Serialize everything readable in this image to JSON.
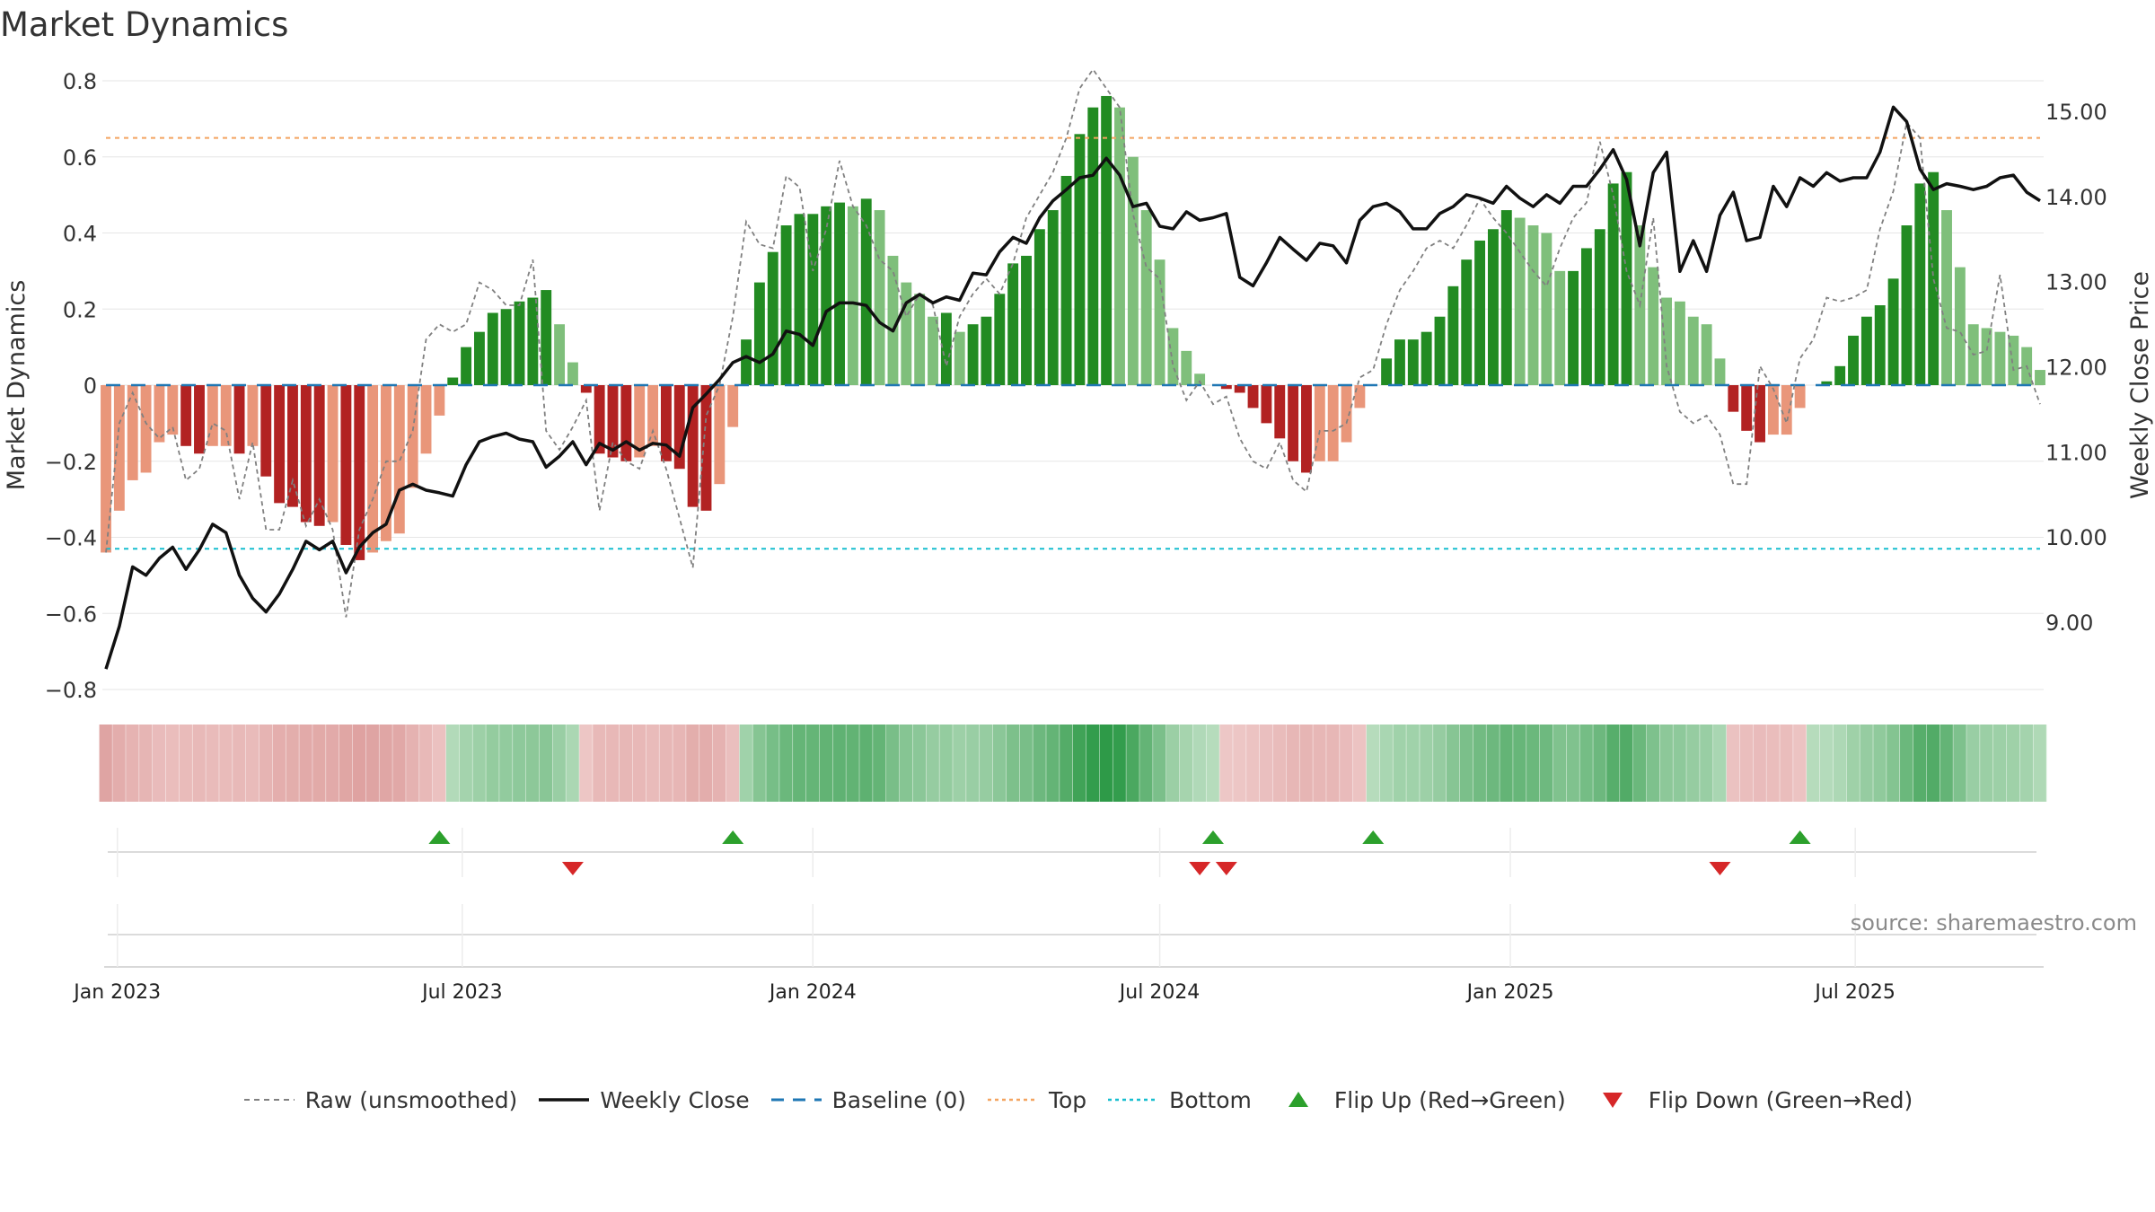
{
  "chart_data": {
    "type": "bar",
    "title": "Market Dynamics",
    "source": "source: sharemaestro.com",
    "ylabel_left": "Market Dynamics",
    "ylabel_right": "Weekly Close Price",
    "ylim_left": [
      -0.85,
      0.85
    ],
    "ylim_right": [
      8.4,
      15.5
    ],
    "yticks_left": [
      "0.8",
      "0.6",
      "0.4",
      "0.2",
      "0",
      "−0.2",
      "−0.4",
      "−0.6",
      "−0.8"
    ],
    "yticks_right": [
      "15.00",
      "14.00",
      "13.00",
      "12.00",
      "11.00",
      "10.00",
      "9.00"
    ],
    "xticks": [
      "Jan 2023",
      "Jul 2023",
      "Jan 2024",
      "Jul 2024",
      "Jan 2025",
      "Jul 2025"
    ],
    "x_start": "2022-12-26",
    "x_step_days": 7,
    "top_level": 0.65,
    "bottom_level": -0.43,
    "baseline": 0,
    "series": [
      {
        "name": "Market Dynamics (histogram)",
        "values": [
          -0.44,
          -0.33,
          -0.25,
          -0.23,
          -0.15,
          -0.13,
          -0.16,
          -0.18,
          -0.16,
          -0.16,
          -0.18,
          -0.16,
          -0.24,
          -0.31,
          -0.32,
          -0.36,
          -0.37,
          -0.36,
          -0.42,
          -0.46,
          -0.44,
          -0.41,
          -0.39,
          -0.27,
          -0.18,
          -0.08,
          0.02,
          0.1,
          0.14,
          0.19,
          0.2,
          0.22,
          0.23,
          0.25,
          0.16,
          0.06,
          -0.02,
          -0.18,
          -0.19,
          -0.2,
          -0.19,
          -0.16,
          -0.2,
          -0.22,
          -0.32,
          -0.33,
          -0.26,
          -0.11,
          0.12,
          0.27,
          0.35,
          0.42,
          0.45,
          0.45,
          0.47,
          0.48,
          0.47,
          0.49,
          0.46,
          0.34,
          0.27,
          0.24,
          0.18,
          0.19,
          0.14,
          0.16,
          0.18,
          0.24,
          0.32,
          0.34,
          0.41,
          0.46,
          0.55,
          0.66,
          0.73,
          0.76,
          0.73,
          0.6,
          0.46,
          0.33,
          0.15,
          0.09,
          0.03,
          0.0,
          -0.01,
          -0.02,
          -0.06,
          -0.1,
          -0.14,
          -0.2,
          -0.23,
          -0.2,
          -0.2,
          -0.15,
          -0.06,
          0.0,
          0.07,
          0.12,
          0.12,
          0.14,
          0.18,
          0.26,
          0.33,
          0.38,
          0.41,
          0.46,
          0.44,
          0.42,
          0.4,
          0.3,
          0.3,
          0.36,
          0.41,
          0.53,
          0.56,
          0.42,
          0.31,
          0.23,
          0.22,
          0.18,
          0.16,
          0.07,
          -0.07,
          -0.12,
          -0.15,
          -0.13,
          -0.13,
          -0.06,
          0.0,
          0.01,
          0.05,
          0.13,
          0.18,
          0.21,
          0.28,
          0.42,
          0.53,
          0.56,
          0.46,
          0.31,
          0.16,
          0.15,
          0.14,
          0.13,
          0.1,
          0.04
        ]
      },
      {
        "name": "Raw (unsmoothed)",
        "values": [
          -0.44,
          -0.1,
          -0.02,
          -0.1,
          -0.14,
          -0.11,
          -0.25,
          -0.22,
          -0.1,
          -0.12,
          -0.3,
          -0.15,
          -0.38,
          -0.38,
          -0.25,
          -0.37,
          -0.3,
          -0.38,
          -0.61,
          -0.38,
          -0.3,
          -0.2,
          -0.2,
          -0.12,
          0.12,
          0.16,
          0.14,
          0.16,
          0.27,
          0.25,
          0.21,
          0.21,
          0.33,
          -0.12,
          -0.17,
          -0.11,
          -0.04,
          -0.33,
          -0.15,
          -0.2,
          -0.22,
          -0.12,
          -0.22,
          -0.35,
          -0.48,
          -0.08,
          0.0,
          0.18,
          0.43,
          0.37,
          0.36,
          0.55,
          0.52,
          0.3,
          0.41,
          0.59,
          0.47,
          0.42,
          0.33,
          0.3,
          0.18,
          0.24,
          0.21,
          0.05,
          0.18,
          0.24,
          0.28,
          0.24,
          0.32,
          0.44,
          0.5,
          0.56,
          0.65,
          0.78,
          0.83,
          0.78,
          0.73,
          0.45,
          0.31,
          0.28,
          0.05,
          -0.04,
          0.01,
          -0.05,
          -0.03,
          -0.14,
          -0.2,
          -0.22,
          -0.15,
          -0.25,
          -0.28,
          -0.12,
          -0.12,
          -0.1,
          0.02,
          0.04,
          0.16,
          0.25,
          0.3,
          0.36,
          0.38,
          0.36,
          0.42,
          0.49,
          0.44,
          0.4,
          0.35,
          0.3,
          0.26,
          0.36,
          0.44,
          0.48,
          0.64,
          0.5,
          0.3,
          0.21,
          0.44,
          0.05,
          -0.07,
          -0.1,
          -0.08,
          -0.13,
          -0.26,
          -0.26,
          0.05,
          -0.01,
          -0.1,
          0.07,
          0.12,
          0.23,
          0.22,
          0.23,
          0.25,
          0.41,
          0.51,
          0.69,
          0.65,
          0.28,
          0.15,
          0.14,
          0.08,
          0.09,
          0.29,
          0.04,
          0.05,
          -0.05
        ]
      },
      {
        "name": "Weekly Close",
        "values": [
          8.45,
          8.95,
          9.65,
          9.55,
          9.75,
          9.88,
          9.62,
          9.85,
          10.15,
          10.05,
          9.55,
          9.28,
          9.12,
          9.33,
          9.62,
          9.95,
          9.85,
          9.95,
          9.58,
          9.88,
          10.05,
          10.15,
          10.55,
          10.62,
          10.55,
          10.52,
          10.48,
          10.85,
          11.12,
          11.18,
          11.22,
          11.15,
          11.12,
          10.82,
          10.95,
          11.12,
          10.85,
          11.1,
          11.02,
          11.12,
          11.02,
          11.1,
          11.08,
          10.95,
          11.52,
          11.68,
          11.85,
          12.05,
          12.12,
          12.05,
          12.15,
          12.42,
          12.38,
          12.25,
          12.65,
          12.75,
          12.75,
          12.72,
          12.52,
          12.42,
          12.75,
          12.85,
          12.75,
          12.82,
          12.78,
          13.1,
          13.08,
          13.35,
          13.52,
          13.45,
          13.75,
          13.95,
          14.08,
          14.22,
          14.25,
          14.45,
          14.25,
          13.88,
          13.92,
          13.65,
          13.62,
          13.82,
          13.72,
          13.75,
          13.8,
          13.05,
          12.95,
          13.22,
          13.52,
          13.38,
          13.25,
          13.45,
          13.42,
          13.22,
          13.72,
          13.88,
          13.92,
          13.82,
          13.62,
          13.62,
          13.8,
          13.88,
          14.02,
          13.98,
          13.92,
          14.12,
          13.98,
          13.88,
          14.02,
          13.92,
          14.12,
          14.12,
          14.32,
          14.55,
          14.2,
          13.42,
          14.28,
          14.52,
          13.12,
          13.48,
          13.12,
          13.78,
          14.05,
          13.48,
          13.52,
          14.12,
          13.88,
          14.22,
          14.12,
          14.28,
          14.18,
          14.22,
          14.22,
          14.52,
          15.05,
          14.88,
          14.32,
          14.08,
          14.15,
          14.12,
          14.08,
          14.12,
          14.22,
          14.25,
          14.05,
          13.95
        ]
      }
    ],
    "flip_up": [
      {
        "week": 25,
        "label": "Flip Up (Red→Green)"
      },
      {
        "week": 47,
        "label": "Flip Up (Red→Green)"
      },
      {
        "week": 83,
        "label": "Flip Up (Red→Green)"
      },
      {
        "week": 95,
        "label": "Flip Up (Red→Green)"
      },
      {
        "week": 127,
        "label": "Flip Up (Red→Green)"
      }
    ],
    "flip_down": [
      {
        "week": 35,
        "label": "Flip Down (Green→Red)"
      },
      {
        "week": 82,
        "label": "Flip Down (Green→Red)"
      },
      {
        "week": 84,
        "label": "Flip Down (Green→Red)"
      },
      {
        "week": 121,
        "label": "Flip Down (Green→Red)"
      }
    ],
    "legend": [
      "Raw (unsmoothed)",
      "Weekly Close",
      "Baseline (0)",
      "Top",
      "Bottom",
      "Flip Up (Red→Green)",
      "Flip Down (Green→Red)"
    ],
    "legend_position": "bottom-center",
    "colors": {
      "green_dark": "#228b22",
      "green_light": "#7fbf7b",
      "red_dark": "#b22222",
      "red_light": "#e9967a",
      "raw": "#808080",
      "close": "#111111",
      "baseline": "#1f77b4",
      "top": "#f4a460",
      "bottom": "#17becf",
      "flip_up": "#2ca02c",
      "flip_down": "#d62728"
    },
    "grid": true
  }
}
